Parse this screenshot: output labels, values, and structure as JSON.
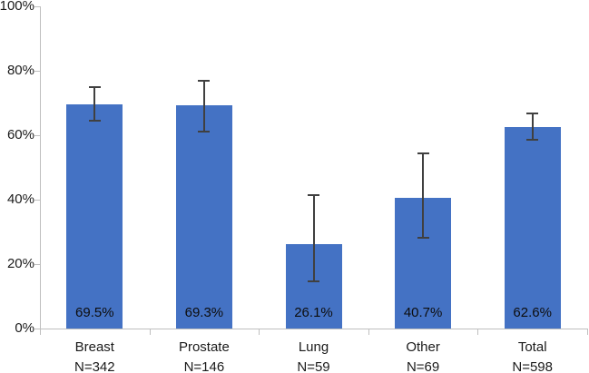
{
  "chart_data": {
    "type": "bar",
    "title": "",
    "xlabel": "",
    "ylabel": "",
    "categories": [
      "Breast",
      "Prostate",
      "Lung",
      "Other",
      "Total"
    ],
    "n_labels": [
      "N=342",
      "N=146",
      "N=59",
      "N=69",
      "N=598"
    ],
    "values": [
      69.5,
      69.3,
      26.1,
      40.7,
      62.6
    ],
    "value_labels": [
      "69.5%",
      "69.3%",
      "26.1%",
      "40.7%",
      "62.6%"
    ],
    "error_low": [
      64.5,
      61.2,
      14.7,
      28.2,
      58.7
    ],
    "error_high": [
      75.0,
      77.0,
      41.3,
      54.5,
      66.8
    ],
    "ylim": [
      0,
      100
    ],
    "ytick_step": 20,
    "ytick_labels": [
      "0%",
      "20%",
      "40%",
      "60%",
      "80%",
      "100%"
    ],
    "grid": false,
    "legend": false,
    "bar_color": "#4472c4",
    "error_bar_color": "#404040",
    "axis_color": "#bfbfbf",
    "text_color": "#1a1a1a"
  }
}
